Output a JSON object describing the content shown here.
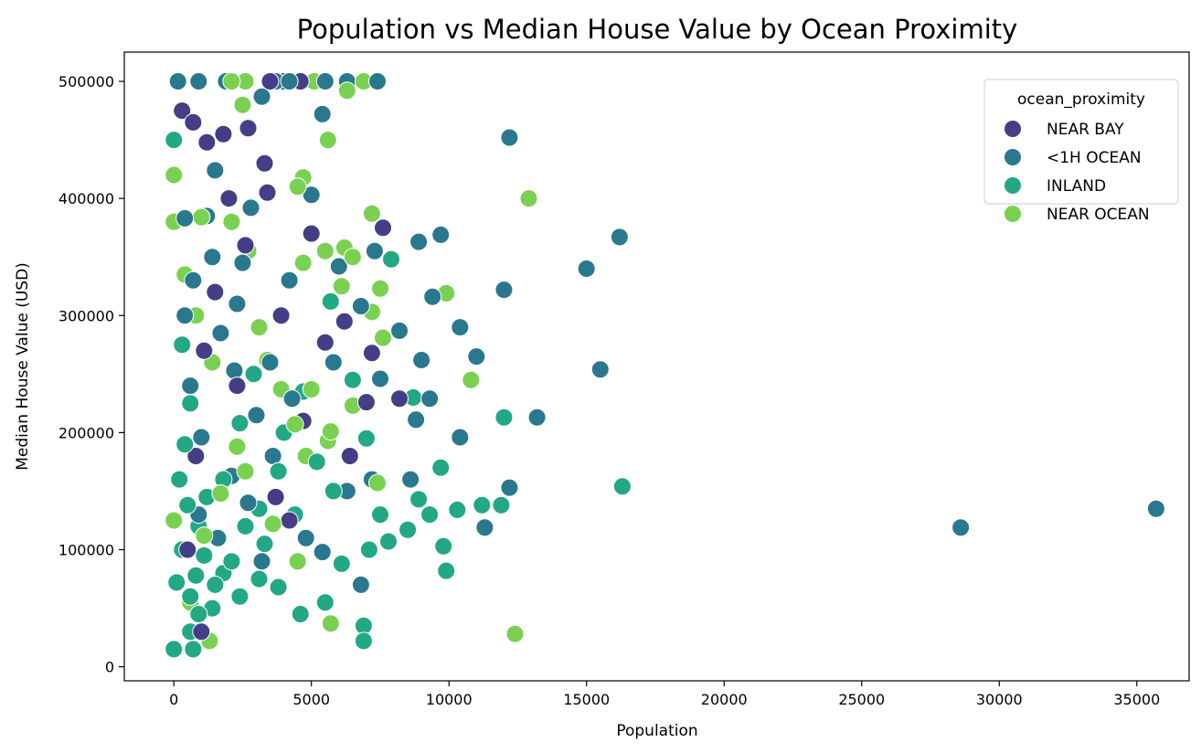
{
  "chart_data": {
    "type": "scatter",
    "title": "Population vs Median House Value by Ocean Proximity",
    "xlabel": "Population",
    "ylabel": "Median House Value (USD)",
    "xlim": [
      -1800,
      36900
    ],
    "ylim": [
      -12000,
      525000
    ],
    "xticks": [
      0,
      5000,
      10000,
      15000,
      20000,
      25000,
      30000,
      35000
    ],
    "yticks": [
      0,
      100000,
      200000,
      300000,
      400000,
      500000
    ],
    "grid": false,
    "legend": {
      "title": "ocean_proximity",
      "position": "top-right",
      "entries": [
        "NEAR BAY",
        "<1H OCEAN",
        "INLAND",
        "NEAR OCEAN"
      ]
    },
    "series": [
      {
        "name": "NEAR BAY",
        "color": "#433e85",
        "points": [
          [
            300,
            475000
          ],
          [
            700,
            465000
          ],
          [
            1200,
            448000
          ],
          [
            1800,
            455000
          ],
          [
            2700,
            460000
          ],
          [
            3300,
            430000
          ],
          [
            3400,
            405000
          ],
          [
            3500,
            500000
          ],
          [
            4000,
            500000
          ],
          [
            4600,
            500000
          ],
          [
            5000,
            370000
          ],
          [
            7600,
            375000
          ],
          [
            5500,
            277000
          ],
          [
            6200,
            295000
          ],
          [
            7200,
            268000
          ],
          [
            8200,
            229000
          ],
          [
            7000,
            226000
          ],
          [
            6400,
            180000
          ],
          [
            4700,
            210000
          ],
          [
            3700,
            145000
          ],
          [
            1000,
            30000
          ],
          [
            2000,
            400000
          ],
          [
            1500,
            320000
          ],
          [
            2300,
            240000
          ],
          [
            800,
            180000
          ],
          [
            2600,
            360000
          ],
          [
            1100,
            270000
          ],
          [
            3900,
            300000
          ],
          [
            500,
            100000
          ],
          [
            4200,
            125000
          ]
        ]
      },
      {
        "name": "<1H OCEAN",
        "color": "#2a788e",
        "points": [
          [
            150,
            500000
          ],
          [
            900,
            500000
          ],
          [
            1900,
            500000
          ],
          [
            3700,
            500000
          ],
          [
            4200,
            500000
          ],
          [
            5500,
            500000
          ],
          [
            6300,
            500000
          ],
          [
            7400,
            500000
          ],
          [
            5400,
            472000
          ],
          [
            12200,
            452000
          ],
          [
            16200,
            367000
          ],
          [
            15000,
            340000
          ],
          [
            9700,
            369000
          ],
          [
            8900,
            363000
          ],
          [
            12000,
            322000
          ],
          [
            9400,
            316000
          ],
          [
            10400,
            290000
          ],
          [
            11000,
            265000
          ],
          [
            15500,
            254000
          ],
          [
            13200,
            213000
          ],
          [
            10400,
            196000
          ],
          [
            12200,
            153000
          ],
          [
            11300,
            119000
          ],
          [
            28600,
            119000
          ],
          [
            35700,
            135000
          ],
          [
            8200,
            287000
          ],
          [
            9000,
            262000
          ],
          [
            9300,
            229000
          ],
          [
            8800,
            211000
          ],
          [
            7500,
            246000
          ],
          [
            6800,
            308000
          ],
          [
            6000,
            342000
          ],
          [
            5000,
            403000
          ],
          [
            3200,
            487000
          ],
          [
            700,
            330000
          ],
          [
            1500,
            424000
          ],
          [
            2500,
            345000
          ],
          [
            3500,
            260000
          ],
          [
            4300,
            229000
          ],
          [
            2100,
            163000
          ],
          [
            900,
            130000
          ],
          [
            1600,
            110000
          ],
          [
            3200,
            90000
          ],
          [
            4800,
            110000
          ],
          [
            6800,
            70000
          ],
          [
            5400,
            98000
          ],
          [
            7200,
            160000
          ],
          [
            6300,
            150000
          ],
          [
            400,
            383000
          ],
          [
            2800,
            392000
          ],
          [
            1200,
            385000
          ],
          [
            1700,
            285000
          ],
          [
            2200,
            253000
          ],
          [
            3000,
            215000
          ],
          [
            600,
            240000
          ],
          [
            4200,
            330000
          ],
          [
            2300,
            310000
          ],
          [
            5800,
            260000
          ],
          [
            7300,
            355000
          ],
          [
            8600,
            160000
          ],
          [
            1000,
            196000
          ],
          [
            3600,
            180000
          ],
          [
            2700,
            140000
          ],
          [
            400,
            300000
          ],
          [
            1400,
            350000
          ]
        ]
      },
      {
        "name": "INLAND",
        "color": "#22a884",
        "points": [
          [
            0,
            450000
          ],
          [
            300,
            275000
          ],
          [
            600,
            225000
          ],
          [
            400,
            190000
          ],
          [
            200,
            160000
          ],
          [
            500,
            138000
          ],
          [
            900,
            120000
          ],
          [
            300,
            100000
          ],
          [
            100,
            72000
          ],
          [
            600,
            60000
          ],
          [
            900,
            45000
          ],
          [
            600,
            30000
          ],
          [
            0,
            15000
          ],
          [
            700,
            15000
          ],
          [
            1400,
            50000
          ],
          [
            1800,
            80000
          ],
          [
            2400,
            60000
          ],
          [
            3100,
            75000
          ],
          [
            3800,
            68000
          ],
          [
            4600,
            45000
          ],
          [
            5500,
            55000
          ],
          [
            6100,
            88000
          ],
          [
            7100,
            100000
          ],
          [
            6900,
            35000
          ],
          [
            6900,
            22000
          ],
          [
            7800,
            107000
          ],
          [
            8500,
            117000
          ],
          [
            8900,
            143000
          ],
          [
            9300,
            130000
          ],
          [
            9800,
            103000
          ],
          [
            9900,
            82000
          ],
          [
            10300,
            134000
          ],
          [
            11200,
            138000
          ],
          [
            11900,
            138000
          ],
          [
            12000,
            213000
          ],
          [
            16300,
            154000
          ],
          [
            9700,
            170000
          ],
          [
            8700,
            230000
          ],
          [
            7900,
            348000
          ],
          [
            5700,
            312000
          ],
          [
            4700,
            235000
          ],
          [
            3800,
            167000
          ],
          [
            3100,
            135000
          ],
          [
            2400,
            208000
          ],
          [
            1800,
            160000
          ],
          [
            1200,
            145000
          ],
          [
            2900,
            250000
          ],
          [
            4000,
            200000
          ],
          [
            6500,
            245000
          ],
          [
            7000,
            195000
          ],
          [
            5200,
            175000
          ],
          [
            4400,
            130000
          ],
          [
            3300,
            105000
          ],
          [
            2100,
            90000
          ],
          [
            1500,
            70000
          ],
          [
            800,
            78000
          ],
          [
            1100,
            95000
          ],
          [
            2600,
            120000
          ],
          [
            5800,
            150000
          ],
          [
            7500,
            130000
          ]
        ]
      },
      {
        "name": "NEAR OCEAN",
        "color": "#7ad151",
        "points": [
          [
            0,
            420000
          ],
          [
            0,
            380000
          ],
          [
            0,
            125000
          ],
          [
            2100,
            500000
          ],
          [
            2600,
            500000
          ],
          [
            5100,
            500000
          ],
          [
            6900,
            500000
          ],
          [
            2500,
            480000
          ],
          [
            6300,
            492000
          ],
          [
            5600,
            450000
          ],
          [
            4700,
            418000
          ],
          [
            4500,
            410000
          ],
          [
            12900,
            400000
          ],
          [
            7200,
            387000
          ],
          [
            4700,
            345000
          ],
          [
            5500,
            355000
          ],
          [
            6200,
            358000
          ],
          [
            6500,
            350000
          ],
          [
            6100,
            325000
          ],
          [
            7500,
            323000
          ],
          [
            9900,
            319000
          ],
          [
            7200,
            303000
          ],
          [
            7600,
            281000
          ],
          [
            10800,
            245000
          ],
          [
            6500,
            223000
          ],
          [
            5700,
            201000
          ],
          [
            5600,
            193000
          ],
          [
            4800,
            180000
          ],
          [
            7400,
            157000
          ],
          [
            5700,
            37000
          ],
          [
            12400,
            28000
          ],
          [
            1300,
            22000
          ],
          [
            1000,
            384000
          ],
          [
            400,
            335000
          ],
          [
            2100,
            380000
          ],
          [
            2700,
            355000
          ],
          [
            3100,
            290000
          ],
          [
            3400,
            262000
          ],
          [
            3900,
            237000
          ],
          [
            4400,
            207000
          ],
          [
            2300,
            188000
          ],
          [
            1700,
            148000
          ],
          [
            1100,
            112000
          ],
          [
            600,
            55000
          ],
          [
            4500,
            90000
          ],
          [
            5000,
            237000
          ],
          [
            2600,
            167000
          ],
          [
            3600,
            122000
          ],
          [
            1400,
            260000
          ],
          [
            800,
            300000
          ]
        ]
      }
    ]
  }
}
